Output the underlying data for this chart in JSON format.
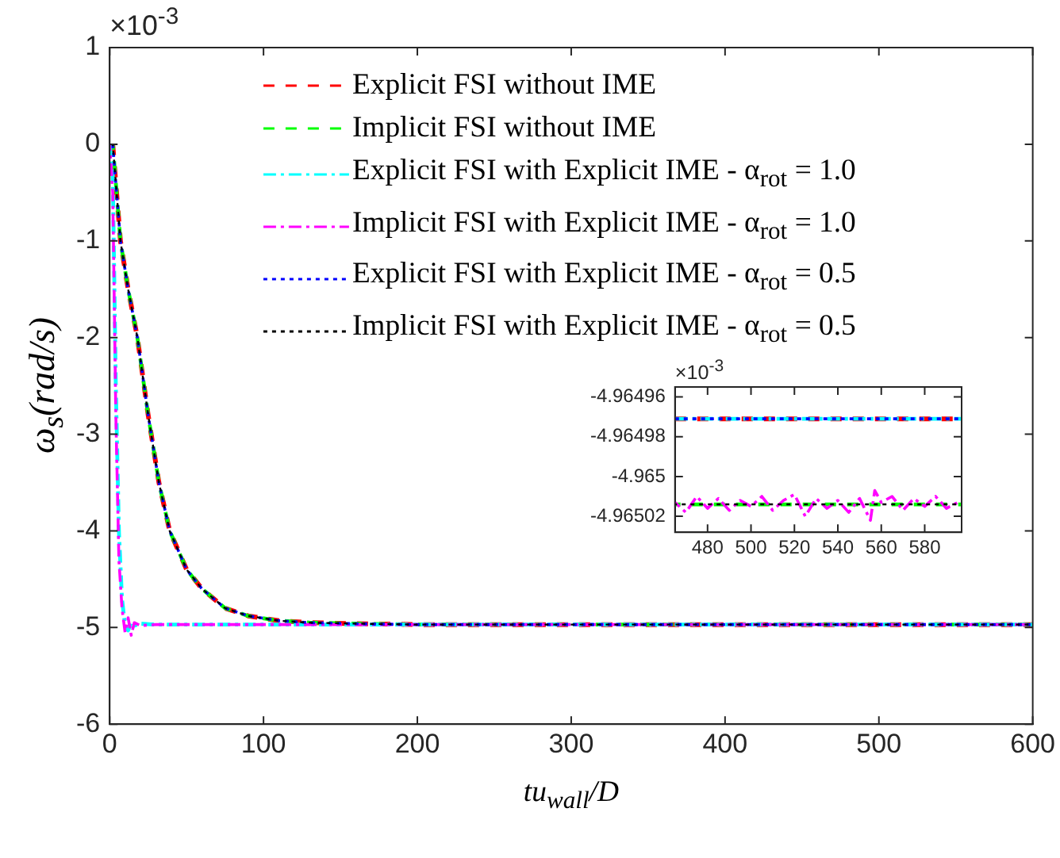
{
  "chart_data": [
    {
      "type": "line",
      "xlabel": "tu$_{wall}$/D",
      "ylabel": "ω$_{s}$(rad/s)",
      "annotations": [
        "×10$^{-3}$"
      ],
      "legend": "top",
      "grid": false,
      "marker": "none",
      "xlim": [
        0,
        600
      ],
      "xticks": [
        0,
        100,
        200,
        300,
        400,
        500,
        600
      ],
      "ylim": [
        -6,
        1
      ],
      "yticks": [
        -6,
        -5,
        -4,
        -3,
        -2,
        -1,
        0,
        1
      ],
      "series": [
        {
          "name": "Explicit FSI without IME",
          "color": "#ff0000",
          "line_style": "dashed",
          "x": [
            2,
            7,
            12,
            18,
            25,
            32,
            39,
            50,
            60,
            75,
            90,
            110,
            130,
            160,
            200,
            600
          ],
          "values": [
            0,
            -1,
            -1.5,
            -2,
            -2.8,
            -3.5,
            -4,
            -4.4,
            -4.6,
            -4.8,
            -4.88,
            -4.93,
            -4.95,
            -4.96,
            -4.97,
            -4.97
          ]
        },
        {
          "name": "Implicit FSI without IME",
          "color": "#00ff00",
          "line_style": "dashed",
          "x": [
            2,
            7,
            12,
            18,
            25,
            32,
            39,
            50,
            60,
            75,
            90,
            110,
            130,
            160,
            200,
            600
          ],
          "values": [
            0,
            -1,
            -1.5,
            -2,
            -2.8,
            -3.5,
            -4,
            -4.4,
            -4.6,
            -4.8,
            -4.88,
            -4.93,
            -4.95,
            -4.96,
            -4.97,
            -4.97
          ]
        },
        {
          "name": "Explicit FSI with Explicit IME - α$_{rot}$ = 1.0",
          "color": "#00ffff",
          "line_style": "dashdot",
          "x": [
            0,
            2,
            4,
            6,
            8,
            10,
            12,
            14,
            16,
            20,
            30,
            600
          ],
          "values": [
            0,
            -0.3,
            -2.5,
            -4,
            -4.7,
            -4.98,
            -5.03,
            -4.95,
            -4.98,
            -4.96,
            -4.97,
            -4.97
          ]
        },
        {
          "name": "Implicit FSI with Explicit IME - α$_{rot}$ = 1.0",
          "color": "#ff00ff",
          "line_style": "dashdot",
          "x": [
            0,
            2,
            4,
            6,
            8,
            10,
            12,
            14,
            16,
            20,
            30,
            600
          ],
          "values": [
            0,
            -0.5,
            -2.8,
            -4.3,
            -4.8,
            -5.05,
            -4.9,
            -5.08,
            -4.95,
            -4.98,
            -4.97,
            -4.97
          ]
        },
        {
          "name": "Explicit FSI with Explicit IME - α$_{rot}$ = 0.5",
          "color": "#0000ff",
          "line_style": "dotted",
          "x": [
            2,
            7,
            12,
            18,
            25,
            32,
            39,
            50,
            60,
            75,
            90,
            110,
            130,
            160,
            200,
            600
          ],
          "values": [
            0,
            -1,
            -1.5,
            -2,
            -2.8,
            -3.5,
            -4,
            -4.4,
            -4.6,
            -4.8,
            -4.88,
            -4.93,
            -4.95,
            -4.96,
            -4.97,
            -4.97
          ]
        },
        {
          "name": "Implicit FSI with Explicit IME - α$_{rot}$ = 0.5",
          "color": "#000000",
          "line_style": "dotted",
          "x": [
            2,
            7,
            12,
            18,
            25,
            32,
            39,
            50,
            60,
            75,
            90,
            110,
            130,
            160,
            200,
            600
          ],
          "values": [
            0,
            -1,
            -1.5,
            -2,
            -2.8,
            -3.5,
            -4,
            -4.4,
            -4.6,
            -4.8,
            -4.88,
            -4.93,
            -4.95,
            -4.96,
            -4.97,
            -4.97
          ]
        }
      ]
    },
    {
      "type": "line",
      "annotations": [
        "×10$^{-3}$"
      ],
      "grid": false,
      "marker": "none",
      "xlim": [
        465,
        597
      ],
      "xticks": [
        480,
        500,
        520,
        540,
        560,
        580
      ],
      "ylim": [
        -4.965028,
        -4.964955
      ],
      "yticks": [
        -4.96502,
        -4.965,
        -4.96498,
        -4.96496
      ],
      "series": [
        {
          "color": "#ff0000",
          "line_style": "dashed",
          "x": [
            465,
            597
          ],
          "values": [
            -4.964971,
            -4.964971
          ]
        },
        {
          "color": "#00ff00",
          "line_style": "dashed",
          "x": [
            465,
            597
          ],
          "values": [
            -4.965014,
            -4.965014
          ]
        },
        {
          "color": "#00ffff",
          "line_style": "dashdot",
          "x": [
            465,
            597
          ],
          "values": [
            -4.964971,
            -4.964971
          ]
        },
        {
          "color": "#ff00ff",
          "line_style": "dashdot",
          "x": [
            465,
            470,
            475,
            480,
            485,
            490,
            495,
            500,
            505,
            510,
            515,
            520,
            525,
            530,
            535,
            540,
            545,
            550,
            555,
            557,
            560,
            565,
            570,
            575,
            580,
            585,
            590,
            597
          ],
          "values": [
            -4.965013,
            -4.965018,
            -4.96501,
            -4.965016,
            -4.965011,
            -4.965017,
            -4.965012,
            -4.965015,
            -4.96501,
            -4.965017,
            -4.965012,
            -4.965009,
            -4.96502,
            -4.965011,
            -4.965016,
            -4.965012,
            -4.965018,
            -4.965011,
            -4.965022,
            -4.965007,
            -4.965013,
            -4.96501,
            -4.965017,
            -4.965011,
            -4.965015,
            -4.96501,
            -4.965016,
            -4.965012
          ]
        },
        {
          "color": "#0000ff",
          "line_style": "dotted",
          "x": [
            465,
            597
          ],
          "values": [
            -4.964971,
            -4.964971
          ]
        },
        {
          "color": "#000000",
          "line_style": "dotted",
          "x": [
            465,
            597
          ],
          "values": [
            -4.965014,
            -4.965014
          ]
        }
      ]
    }
  ]
}
